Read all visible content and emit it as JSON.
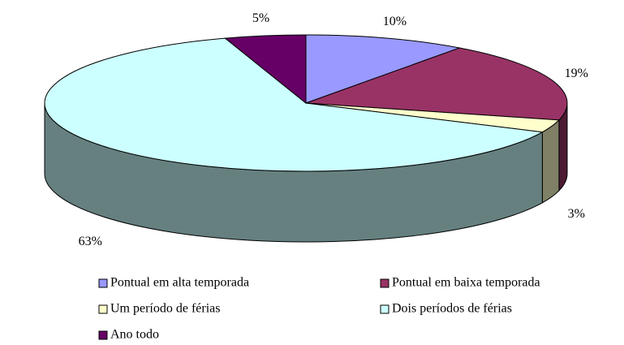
{
  "chart_data": {
    "type": "pie3d",
    "categories": [
      "Pontual em alta temporada",
      "Pontual em baixa temporada",
      "Um período de férias",
      "Dois períodos de férias",
      "Ano todo"
    ],
    "values": [
      10,
      19,
      3,
      63,
      5
    ],
    "value_labels": [
      "10%",
      "19%",
      "3%",
      "63%",
      "5%"
    ],
    "colors": [
      "#9999ff",
      "#993366",
      "#ffffcc",
      "#ccffff",
      "#660066"
    ],
    "legend": "bottom"
  }
}
